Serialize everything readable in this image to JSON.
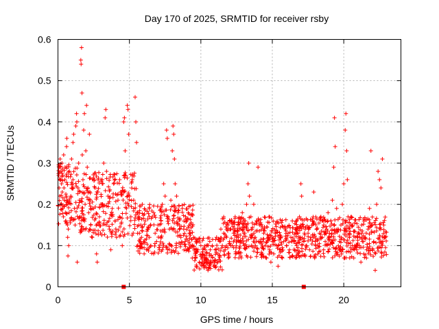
{
  "chart_data": {
    "type": "scatter",
    "title": "Day 170 of 2025, SRMTID for receiver rsby",
    "xlabel": "GPS time / hours",
    "ylabel": "SRMTID / TECUs",
    "xlim": [
      0,
      24
    ],
    "ylim": [
      0,
      0.6
    ],
    "xticks": [
      0,
      5,
      10,
      15,
      20
    ],
    "yticks": [
      0,
      0.1,
      0.2,
      0.3,
      0.4,
      0.5,
      0.6
    ],
    "xtick_labels": [
      "0",
      "5",
      "10",
      "15",
      "20"
    ],
    "ytick_labels": [
      "0",
      "0.1",
      "0.2",
      "0.3",
      "0.4",
      "0.5",
      "0.6"
    ],
    "grid": true,
    "marker": "plus",
    "color": "#ff0000",
    "series": [
      {
        "name": "SRMTID",
        "points": [
          [
            0.05,
            0.27
          ],
          [
            0.08,
            0.24
          ],
          [
            0.1,
            0.29
          ],
          [
            0.12,
            0.22
          ],
          [
            0.15,
            0.31
          ],
          [
            0.18,
            0.26
          ],
          [
            0.2,
            0.2
          ],
          [
            0.22,
            0.28
          ],
          [
            0.25,
            0.25
          ],
          [
            0.28,
            0.3
          ],
          [
            0.3,
            0.23
          ],
          [
            0.32,
            0.19
          ],
          [
            0.35,
            0.27
          ],
          [
            0.38,
            0.17
          ],
          [
            0.4,
            0.32
          ],
          [
            0.42,
            0.24
          ],
          [
            0.45,
            0.21
          ],
          [
            0.48,
            0.26
          ],
          [
            0.5,
            0.29
          ],
          [
            0.52,
            0.18
          ],
          [
            0.55,
            0.16
          ],
          [
            0.58,
            0.22
          ],
          [
            0.6,
            0.34
          ],
          [
            0.62,
            0.36
          ],
          [
            0.65,
            0.2
          ],
          [
            0.68,
            0.12
          ],
          [
            0.7,
            0.075
          ],
          [
            0.72,
            0.14
          ],
          [
            0.75,
            0.1
          ],
          [
            0.78,
            0.18
          ],
          [
            0.8,
            0.28
          ],
          [
            0.85,
            0.16
          ],
          [
            0.9,
            0.22
          ],
          [
            0.95,
            0.31
          ],
          [
            1.0,
            0.25
          ],
          [
            1.05,
            0.35
          ],
          [
            1.1,
            0.37
          ],
          [
            1.15,
            0.19
          ],
          [
            1.2,
            0.15
          ],
          [
            1.25,
            0.39
          ],
          [
            1.3,
            0.42
          ],
          [
            1.32,
            0.4
          ],
          [
            1.35,
            0.06
          ],
          [
            1.4,
            0.24
          ],
          [
            1.45,
            0.3
          ],
          [
            1.5,
            0.21
          ],
          [
            1.55,
            0.17
          ],
          [
            1.6,
            0.55
          ],
          [
            1.62,
            0.54
          ],
          [
            1.65,
            0.58
          ],
          [
            1.68,
            0.47
          ],
          [
            1.7,
            0.32
          ],
          [
            1.75,
            0.26
          ],
          [
            1.8,
            0.38
          ],
          [
            1.85,
            0.42
          ],
          [
            1.9,
            0.2
          ],
          [
            1.95,
            0.33
          ],
          [
            2.0,
            0.44
          ],
          [
            2.05,
            0.29
          ],
          [
            2.1,
            0.24
          ],
          [
            2.15,
            0.18
          ],
          [
            2.2,
            0.37
          ],
          [
            2.25,
            0.21
          ],
          [
            2.3,
            0.15
          ],
          [
            2.4,
            0.12
          ],
          [
            2.5,
            0.19
          ],
          [
            2.6,
            0.24
          ],
          [
            2.7,
            0.08
          ],
          [
            2.75,
            0.06
          ],
          [
            2.8,
            0.23
          ],
          [
            2.9,
            0.17
          ],
          [
            3.0,
            0.2
          ],
          [
            3.1,
            0.26
          ],
          [
            3.2,
            0.3
          ],
          [
            3.3,
            0.41
          ],
          [
            3.35,
            0.43
          ],
          [
            3.4,
            0.28
          ],
          [
            3.5,
            0.22
          ],
          [
            3.6,
            0.14
          ],
          [
            3.7,
            0.09
          ],
          [
            3.8,
            0.19
          ],
          [
            3.9,
            0.25
          ],
          [
            4.0,
            0.16
          ],
          [
            4.1,
            0.12
          ],
          [
            4.2,
            0.21
          ],
          [
            4.3,
            0.17
          ],
          [
            4.4,
            0.23
          ],
          [
            4.5,
            0.1
          ],
          [
            4.6,
            0.4
          ],
          [
            4.65,
            0.41
          ],
          [
            4.7,
            0.33
          ],
          [
            4.75,
            0.27
          ],
          [
            4.8,
            0.19
          ],
          [
            4.85,
            0.44
          ],
          [
            4.9,
            0.43
          ],
          [
            4.95,
            0.37
          ],
          [
            5.0,
            0.22
          ],
          [
            5.1,
            0.17
          ],
          [
            5.2,
            0.26
          ],
          [
            5.3,
            0.21
          ],
          [
            5.4,
            0.46
          ],
          [
            5.45,
            0.4
          ],
          [
            5.5,
            0.35
          ],
          [
            5.6,
            0.18
          ],
          [
            5.7,
            0.13
          ],
          [
            5.8,
            0.15
          ],
          [
            5.9,
            0.2
          ],
          [
            6.0,
            0.11
          ],
          [
            6.1,
            0.16
          ],
          [
            6.2,
            0.09
          ],
          [
            6.3,
            0.14
          ],
          [
            6.4,
            0.12
          ],
          [
            6.5,
            0.1
          ],
          [
            6.6,
            0.17
          ],
          [
            6.7,
            0.08
          ],
          [
            6.8,
            0.13
          ],
          [
            6.9,
            0.11
          ],
          [
            7.0,
            0.15
          ],
          [
            7.1,
            0.09
          ],
          [
            7.2,
            0.12
          ],
          [
            7.3,
            0.2
          ],
          [
            7.4,
            0.25
          ],
          [
            7.5,
            0.22
          ],
          [
            7.6,
            0.38
          ],
          [
            7.65,
            0.36
          ],
          [
            7.7,
            0.17
          ],
          [
            7.8,
            0.14
          ],
          [
            7.9,
            0.21
          ],
          [
            8.0,
            0.33
          ],
          [
            8.05,
            0.39
          ],
          [
            8.1,
            0.37
          ],
          [
            8.15,
            0.31
          ],
          [
            8.2,
            0.25
          ],
          [
            8.3,
            0.22
          ],
          [
            8.4,
            0.18
          ],
          [
            8.5,
            0.15
          ],
          [
            8.6,
            0.12
          ],
          [
            8.7,
            0.19
          ],
          [
            8.8,
            0.14
          ],
          [
            8.9,
            0.11
          ],
          [
            9.0,
            0.16
          ],
          [
            9.1,
            0.09
          ],
          [
            9.2,
            0.13
          ],
          [
            9.3,
            0.1
          ],
          [
            9.4,
            0.07
          ],
          [
            9.5,
            0.12
          ],
          [
            9.6,
            0.08
          ],
          [
            9.7,
            0.11
          ],
          [
            9.8,
            0.09
          ],
          [
            9.9,
            0.06
          ],
          [
            10.0,
            0.1
          ],
          [
            10.1,
            0.08
          ],
          [
            10.2,
            0.05
          ],
          [
            10.3,
            0.09
          ],
          [
            10.4,
            0.07
          ],
          [
            10.5,
            0.04
          ],
          [
            10.6,
            0.08
          ],
          [
            10.7,
            0.06
          ],
          [
            10.8,
            0.1
          ],
          [
            10.9,
            0.05
          ],
          [
            11.0,
            0.09
          ],
          [
            11.1,
            0.12
          ],
          [
            11.2,
            0.08
          ],
          [
            11.3,
            0.11
          ],
          [
            11.4,
            0.14
          ],
          [
            11.5,
            0.1
          ],
          [
            11.6,
            0.13
          ],
          [
            11.7,
            0.09
          ],
          [
            11.8,
            0.12
          ],
          [
            11.9,
            0.15
          ],
          [
            12.0,
            0.11
          ],
          [
            12.1,
            0.14
          ],
          [
            12.2,
            0.1
          ],
          [
            12.3,
            0.13
          ],
          [
            12.4,
            0.17
          ],
          [
            12.5,
            0.12
          ],
          [
            12.6,
            0.15
          ],
          [
            12.7,
            0.11
          ],
          [
            12.8,
            0.14
          ],
          [
            12.9,
            0.18
          ],
          [
            13.0,
            0.13
          ],
          [
            13.1,
            0.16
          ],
          [
            13.2,
            0.2
          ],
          [
            13.3,
            0.25
          ],
          [
            13.35,
            0.3
          ],
          [
            13.4,
            0.22
          ],
          [
            13.5,
            0.17
          ],
          [
            13.6,
            0.14
          ],
          [
            13.7,
            0.2
          ],
          [
            13.8,
            0.12
          ],
          [
            13.9,
            0.16
          ],
          [
            14.0,
            0.29
          ],
          [
            14.1,
            0.15
          ],
          [
            14.2,
            0.11
          ],
          [
            14.3,
            0.08
          ],
          [
            14.4,
            0.13
          ],
          [
            14.5,
            0.1
          ],
          [
            14.6,
            0.07
          ],
          [
            14.7,
            0.12
          ],
          [
            14.8,
            0.09
          ],
          [
            14.9,
            0.06
          ],
          [
            15.0,
            0.11
          ],
          [
            15.1,
            0.08
          ],
          [
            15.2,
            0.13
          ],
          [
            15.3,
            0.1
          ],
          [
            15.4,
            0.05
          ],
          [
            15.5,
            0.09
          ],
          [
            15.6,
            0.12
          ],
          [
            15.7,
            0.07
          ],
          [
            15.8,
            0.11
          ],
          [
            15.9,
            0.14
          ],
          [
            16.0,
            0.1
          ],
          [
            16.1,
            0.13
          ],
          [
            16.2,
            0.09
          ],
          [
            16.3,
            0.12
          ],
          [
            16.4,
            0.16
          ],
          [
            16.5,
            0.11
          ],
          [
            16.6,
            0.14
          ],
          [
            16.7,
            0.1
          ],
          [
            16.8,
            0.13
          ],
          [
            16.9,
            0.17
          ],
          [
            17.0,
            0.25
          ],
          [
            17.05,
            0.22
          ],
          [
            17.1,
            0.15
          ],
          [
            17.2,
            0.11
          ],
          [
            17.3,
            0.14
          ],
          [
            17.4,
            0.1
          ],
          [
            17.5,
            0.13
          ],
          [
            17.6,
            0.09
          ],
          [
            17.7,
            0.12
          ],
          [
            17.8,
            0.16
          ],
          [
            17.9,
            0.23
          ],
          [
            18.0,
            0.11
          ],
          [
            18.1,
            0.14
          ],
          [
            18.2,
            0.1
          ],
          [
            18.3,
            0.13
          ],
          [
            18.4,
            0.17
          ],
          [
            18.5,
            0.12
          ],
          [
            18.6,
            0.15
          ],
          [
            18.7,
            0.11
          ],
          [
            18.8,
            0.14
          ],
          [
            18.9,
            0.18
          ],
          [
            19.0,
            0.13
          ],
          [
            19.1,
            0.16
          ],
          [
            19.2,
            0.21
          ],
          [
            19.3,
            0.29
          ],
          [
            19.35,
            0.41
          ],
          [
            19.4,
            0.34
          ],
          [
            19.5,
            0.19
          ],
          [
            19.6,
            0.14
          ],
          [
            19.7,
            0.11
          ],
          [
            19.8,
            0.15
          ],
          [
            19.9,
            0.2
          ],
          [
            20.0,
            0.25
          ],
          [
            20.1,
            0.38
          ],
          [
            20.15,
            0.42
          ],
          [
            20.2,
            0.33
          ],
          [
            20.25,
            0.26
          ],
          [
            20.3,
            0.17
          ],
          [
            20.4,
            0.12
          ],
          [
            20.5,
            0.15
          ],
          [
            20.6,
            0.1
          ],
          [
            20.7,
            0.07
          ],
          [
            20.8,
            0.12
          ],
          [
            20.9,
            0.09
          ],
          [
            21.0,
            0.13
          ],
          [
            21.1,
            0.1
          ],
          [
            21.2,
            0.06
          ],
          [
            21.3,
            0.11
          ],
          [
            21.4,
            0.08
          ],
          [
            21.5,
            0.12
          ],
          [
            21.6,
            0.09
          ],
          [
            21.7,
            0.14
          ],
          [
            21.8,
            0.19
          ],
          [
            21.9,
            0.33
          ],
          [
            22.0,
            0.15
          ],
          [
            22.1,
            0.11
          ],
          [
            22.2,
            0.04
          ],
          [
            22.3,
            0.2
          ],
          [
            22.4,
            0.28
          ],
          [
            22.5,
            0.26
          ],
          [
            22.6,
            0.24
          ],
          [
            22.7,
            0.31
          ],
          [
            22.8,
            0.15
          ],
          [
            22.9,
            0.12
          ]
        ]
      }
    ],
    "density_regions": [
      {
        "x": [
          0,
          1.5
        ],
        "y": [
          0.15,
          0.3
        ]
      },
      {
        "x": [
          1.5,
          5.5
        ],
        "y": [
          0.12,
          0.28
        ]
      },
      {
        "x": [
          5.5,
          9.5
        ],
        "y": [
          0.08,
          0.2
        ]
      },
      {
        "x": [
          9.5,
          11.5
        ],
        "y": [
          0.04,
          0.12
        ]
      },
      {
        "x": [
          11.5,
          23
        ],
        "y": [
          0.07,
          0.17
        ]
      }
    ],
    "zero_markers": [
      4.6,
      17.2
    ]
  }
}
